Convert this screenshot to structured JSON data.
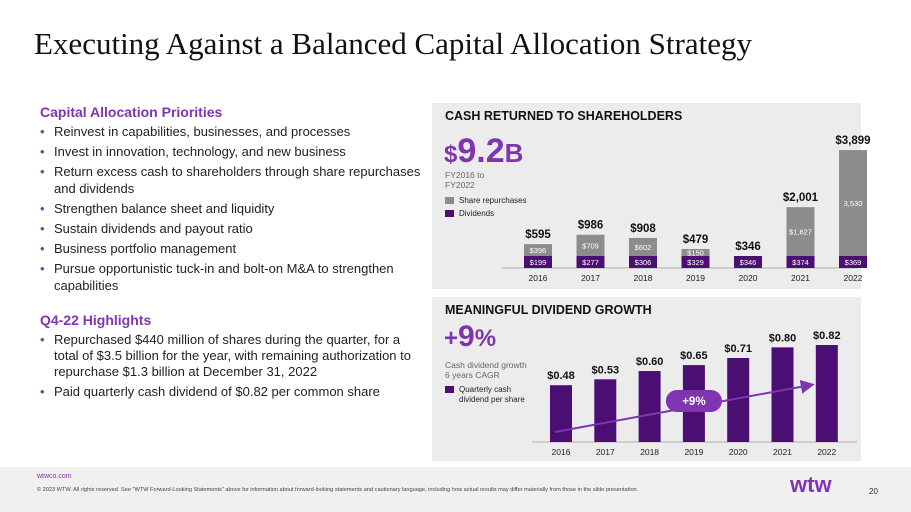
{
  "title": "Executing Against a Balanced Capital Allocation Strategy",
  "left": {
    "priorities_heading": "Capital Allocation Priorities",
    "priorities": [
      "Reinvest in capabilities, businesses, and processes",
      "Invest in innovation, technology, and new business",
      "Return excess cash to shareholders through share repurchases and dividends",
      "Strengthen balance sheet and liquidity",
      "Sustain dividends and payout ratio",
      "Business portfolio management",
      "Pursue opportunistic tuck-in and bolt-on M&A to strengthen capabilities"
    ],
    "highlights_heading": "Q4-22 Highlights",
    "highlights": [
      "Repurchased $440 million of shares during the quarter, for a total of $3.5 billion for the year, with remaining authorization to repurchase $1.3 billion at December 31, 2022",
      "Paid quarterly cash dividend of $0.82 per common share"
    ]
  },
  "cash_panel": {
    "heading": "CASH RETURNED TO SHAREHOLDERS",
    "big_prefix": "$",
    "big_number": "9.2",
    "big_suffix": "B",
    "period_line1": "FY2016 to",
    "period_line2": "FY2022",
    "legend_repurchases": "Share repurchases",
    "legend_dividends": "Dividends"
  },
  "dividend_panel": {
    "heading": "MEANINGFUL DIVIDEND GROWTH",
    "big_sign": "+",
    "big_number": "9",
    "big_suffix": "%",
    "sub_line1": "Cash dividend growth",
    "sub_line2": "6 years CAGR",
    "legend_line1": "Quarterly cash",
    "legend_line2": "dividend per share",
    "growth_badge": "+9%"
  },
  "chart_data": [
    {
      "type": "bar",
      "stacked": true,
      "categories": [
        "2016",
        "2017",
        "2018",
        "2019",
        "2020",
        "2021",
        "2022"
      ],
      "series": [
        {
          "name": "Dividends",
          "values": [
            199,
            277,
            306,
            329,
            346,
            374,
            369
          ],
          "labels": [
            "$199",
            "$277",
            "$306",
            "$329",
            "$346",
            "$374",
            "$369"
          ],
          "color": "#4b0f73"
        },
        {
          "name": "Share repurchases",
          "values": [
            396,
            709,
            602,
            150,
            0,
            1627,
            3530
          ],
          "labels": [
            "$396",
            "$709",
            "$602",
            "$150",
            "",
            "$1,627",
            "3,530"
          ],
          "color": "#8c8c8c"
        }
      ],
      "totals": [
        "$595",
        "$986",
        "$908",
        "$479",
        "$346",
        "$2,001",
        "$3,899"
      ],
      "ylim": [
        0,
        3899
      ]
    },
    {
      "type": "bar",
      "categories": [
        "2016",
        "2017",
        "2018",
        "2019",
        "2020",
        "2021",
        "2022"
      ],
      "values": [
        0.48,
        0.53,
        0.6,
        0.65,
        0.71,
        0.8,
        0.82
      ],
      "labels": [
        "$0.48",
        "$0.53",
        "$0.60",
        "$0.65",
        "$0.71",
        "$0.80",
        "$0.82"
      ],
      "color": "#4b0f73",
      "ylim": [
        0,
        0.82
      ]
    }
  ],
  "colors": {
    "accent_purple": "#7f35b2",
    "dark_purple": "#4b0f73",
    "repurchase_gray": "#8c8c8c",
    "panel_bg": "#ececec"
  },
  "footer": {
    "url": "wtwco.com",
    "copyright": "© 2023 WTW. All rights reserved. See \"WTW Forward-Looking Statements\" above for information about forward-looking statements and cautionary language, including how actual results may differ materially from those in the slide presentation.",
    "logo_text": "wtw",
    "page_number": "20"
  }
}
